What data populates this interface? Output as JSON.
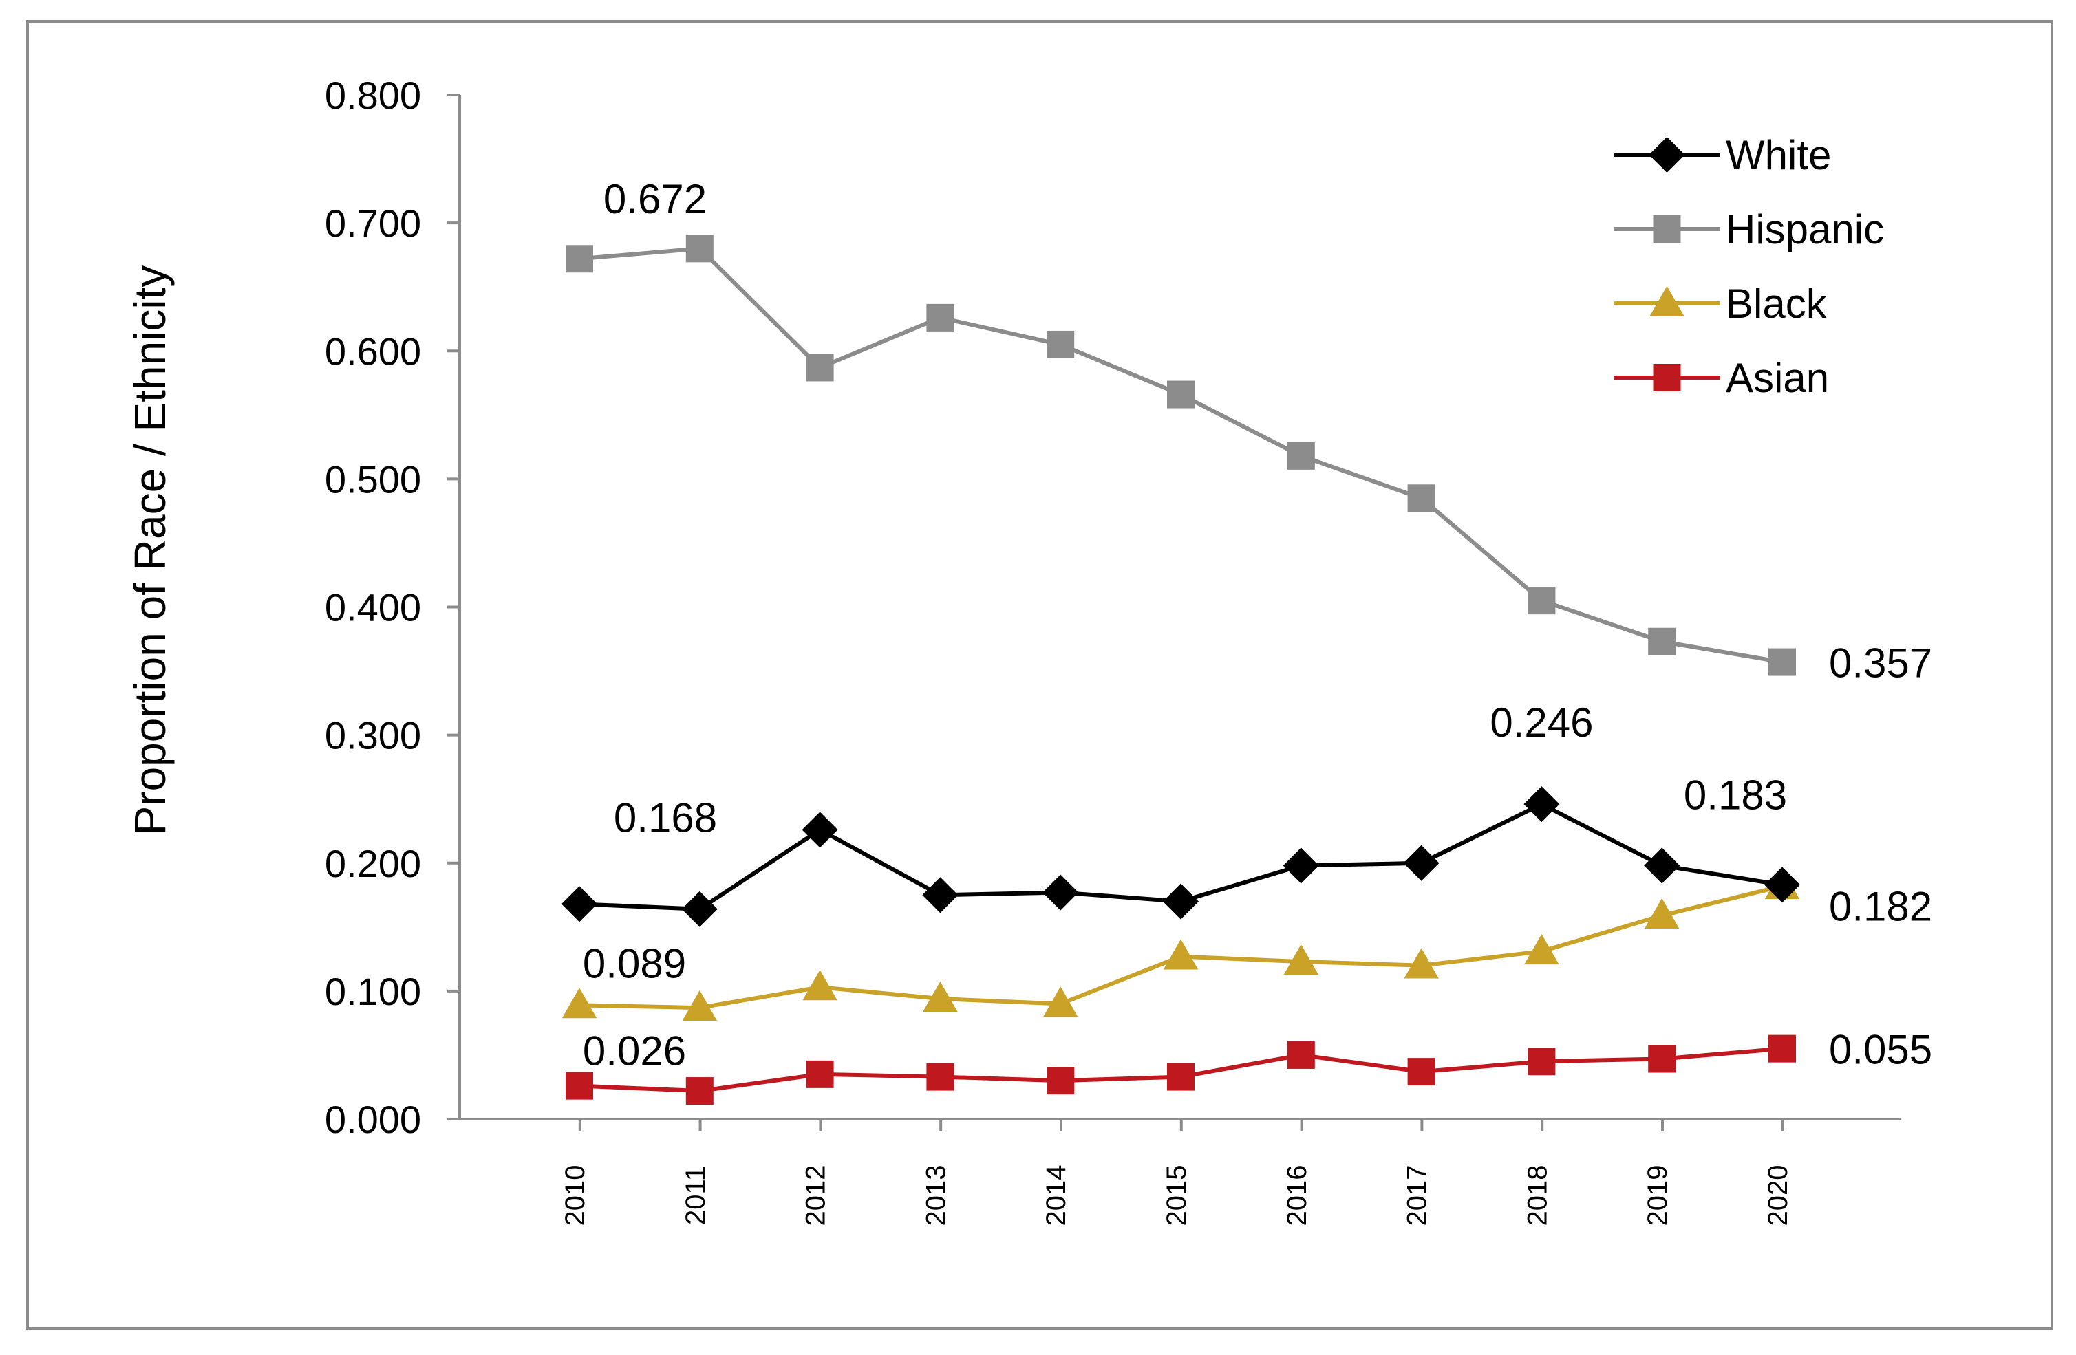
{
  "chart_data": {
    "type": "line",
    "title": "",
    "xlabel": "",
    "ylabel": "Proportion of  Race / Ethnicity",
    "ylim": [
      0,
      0.8
    ],
    "yticks": [
      "0.000",
      "0.100",
      "0.200",
      "0.300",
      "0.400",
      "0.500",
      "0.600",
      "0.700",
      "0.800"
    ],
    "grid": false,
    "legend_position": "top-right",
    "categories": [
      "2010",
      "2011",
      "2012",
      "2013",
      "2014",
      "2015",
      "2016",
      "2017",
      "2018",
      "2019",
      "2020"
    ],
    "series": [
      {
        "name": "White",
        "color": "#000000",
        "marker": "diamond",
        "values": [
          0.168,
          0.164,
          0.226,
          0.175,
          0.177,
          0.17,
          0.198,
          0.2,
          0.246,
          0.198,
          0.183
        ]
      },
      {
        "name": "Hispanic",
        "color": "#8c8c8c",
        "marker": "square",
        "values": [
          0.672,
          0.68,
          0.587,
          0.626,
          0.605,
          0.566,
          0.518,
          0.485,
          0.405,
          0.373,
          0.357
        ]
      },
      {
        "name": "Black",
        "color": "#c9a227",
        "marker": "triangle",
        "values": [
          0.089,
          0.087,
          0.103,
          0.094,
          0.09,
          0.127,
          0.123,
          0.12,
          0.131,
          0.159,
          0.182
        ]
      },
      {
        "name": "Asian",
        "color": "#c0181f",
        "marker": "square",
        "values": [
          0.026,
          0.022,
          0.035,
          0.033,
          0.03,
          0.033,
          0.05,
          0.037,
          0.045,
          0.047,
          0.055
        ]
      }
    ],
    "annotations": [
      {
        "text": "0.672",
        "series": "Hispanic",
        "index": 0,
        "anchor": "above"
      },
      {
        "text": "0.357",
        "series": "Hispanic",
        "index": 10,
        "anchor": "right"
      },
      {
        "text": "0.168",
        "series": "White",
        "index": 0,
        "anchor": "above"
      },
      {
        "text": "0.246",
        "series": "White",
        "index": 8,
        "anchor": "above"
      },
      {
        "text": "0.183",
        "series": "White",
        "index": 10,
        "anchor": "above"
      },
      {
        "text": "0.182",
        "series": "Black",
        "index": 10,
        "anchor": "right-below"
      },
      {
        "text": "0.089",
        "series": "Black",
        "index": 0,
        "anchor": "above"
      },
      {
        "text": "0.026",
        "series": "Asian",
        "index": 0,
        "anchor": "above"
      },
      {
        "text": "0.055",
        "series": "Asian",
        "index": 10,
        "anchor": "right"
      }
    ]
  }
}
